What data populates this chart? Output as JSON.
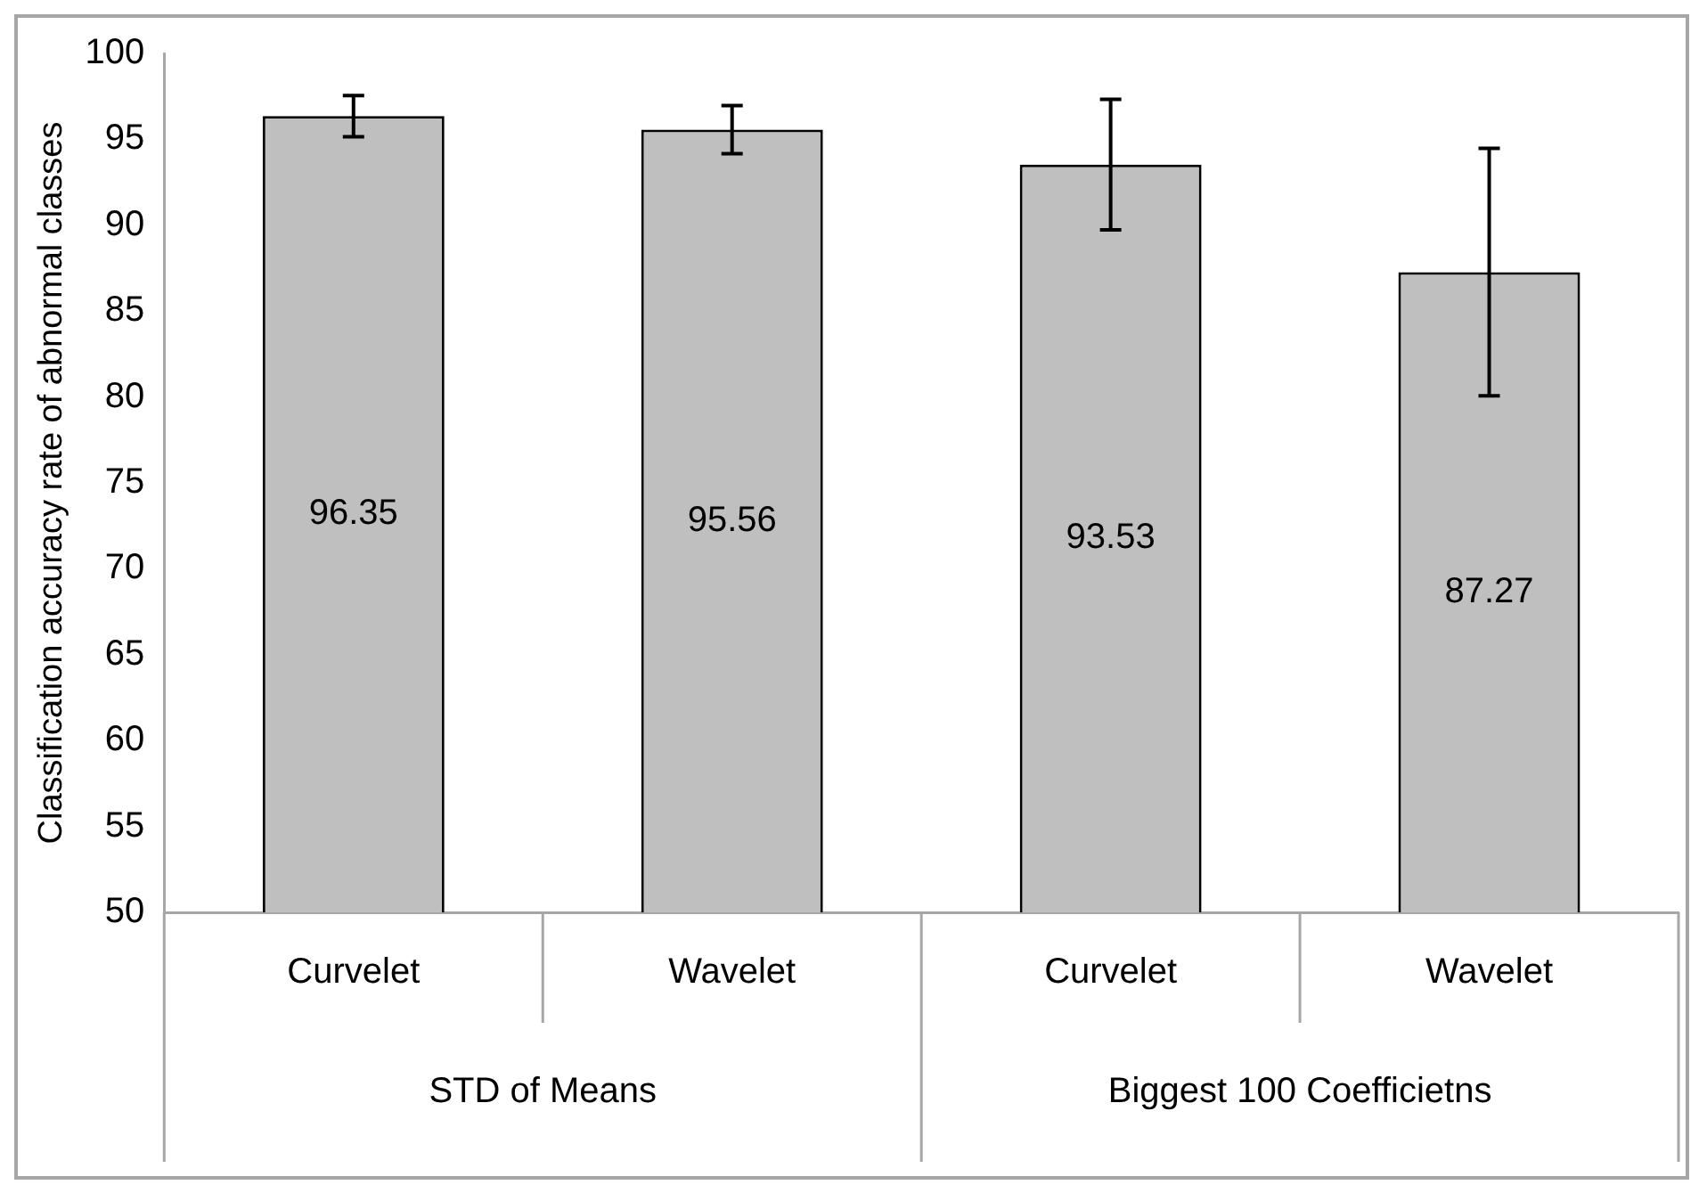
{
  "chart_data": {
    "type": "bar",
    "ylabel": "Classification accuracy rate of abnormal classes",
    "categories": [
      "Curvelet",
      "Wavelet",
      "Curvelet",
      "Wavelet"
    ],
    "values": [
      96.35,
      95.56,
      93.53,
      87.27
    ],
    "errors": [
      1.2,
      1.4,
      3.8,
      7.2
    ],
    "color": "#bfbfbf",
    "ylim": [
      50,
      100
    ],
    "yticks": [
      50,
      55,
      60,
      65,
      70,
      75,
      80,
      85,
      90,
      95,
      100
    ],
    "data_labels": true,
    "grid": false,
    "legend": false,
    "annotations": [
      "STD of Means",
      "Biggest 100 Coefficietns"
    ]
  }
}
